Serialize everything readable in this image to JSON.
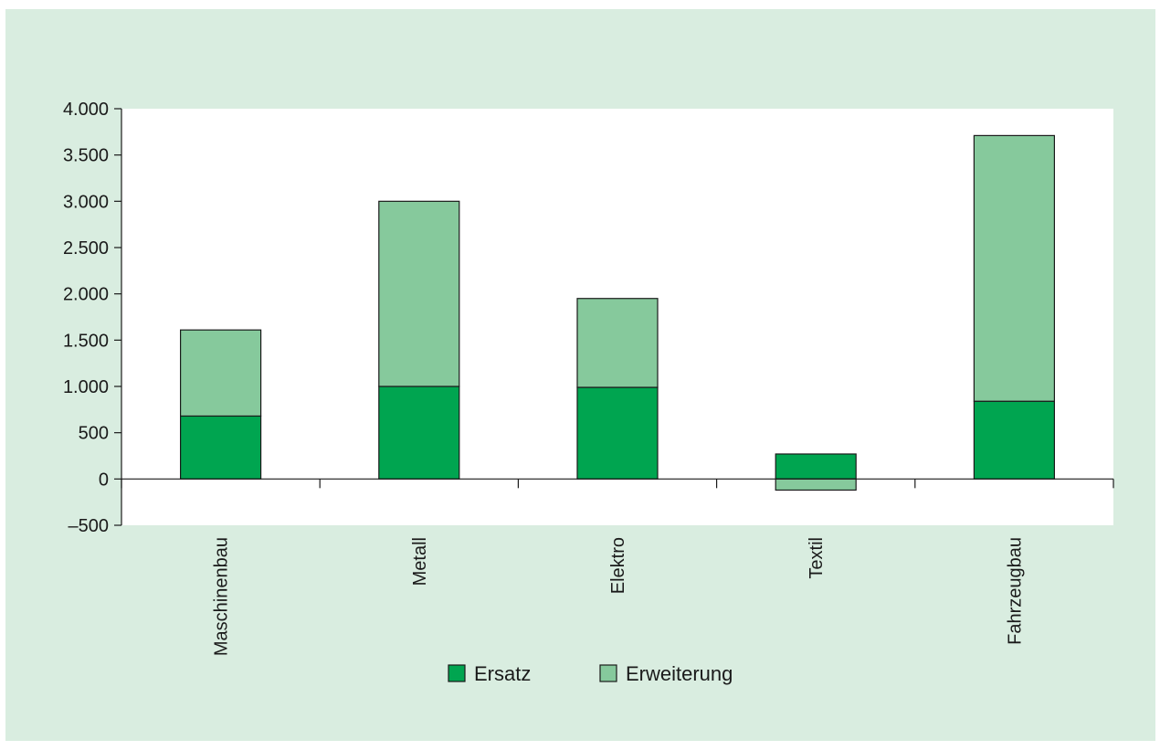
{
  "chart_data": {
    "type": "bar",
    "stacked": true,
    "categories": [
      "Maschinenbau",
      "Metall",
      "Elektro",
      "Textil",
      "Fahrzeugbau"
    ],
    "series": [
      {
        "name": "Ersatz",
        "values": [
          680,
          1000,
          990,
          270,
          840
        ],
        "color": "#00a550"
      },
      {
        "name": "Erweiterung",
        "values": [
          930,
          2000,
          960,
          -120,
          2870
        ],
        "color": "#86c99c"
      }
    ],
    "ylim": [
      -500,
      4000
    ],
    "yticks": [
      -500,
      0,
      500,
      1000,
      1500,
      2000,
      2500,
      3000,
      3500,
      4000
    ],
    "ytick_labels": [
      "–500",
      "0",
      "500",
      "1.000",
      "1.500",
      "2.000",
      "2.500",
      "3.000",
      "3.500",
      "4.000"
    ],
    "legend": {
      "position": "bottom-center"
    },
    "grid": false,
    "colors": {
      "frame_background": "#d9ede0",
      "plot_background": "#ffffff"
    }
  }
}
